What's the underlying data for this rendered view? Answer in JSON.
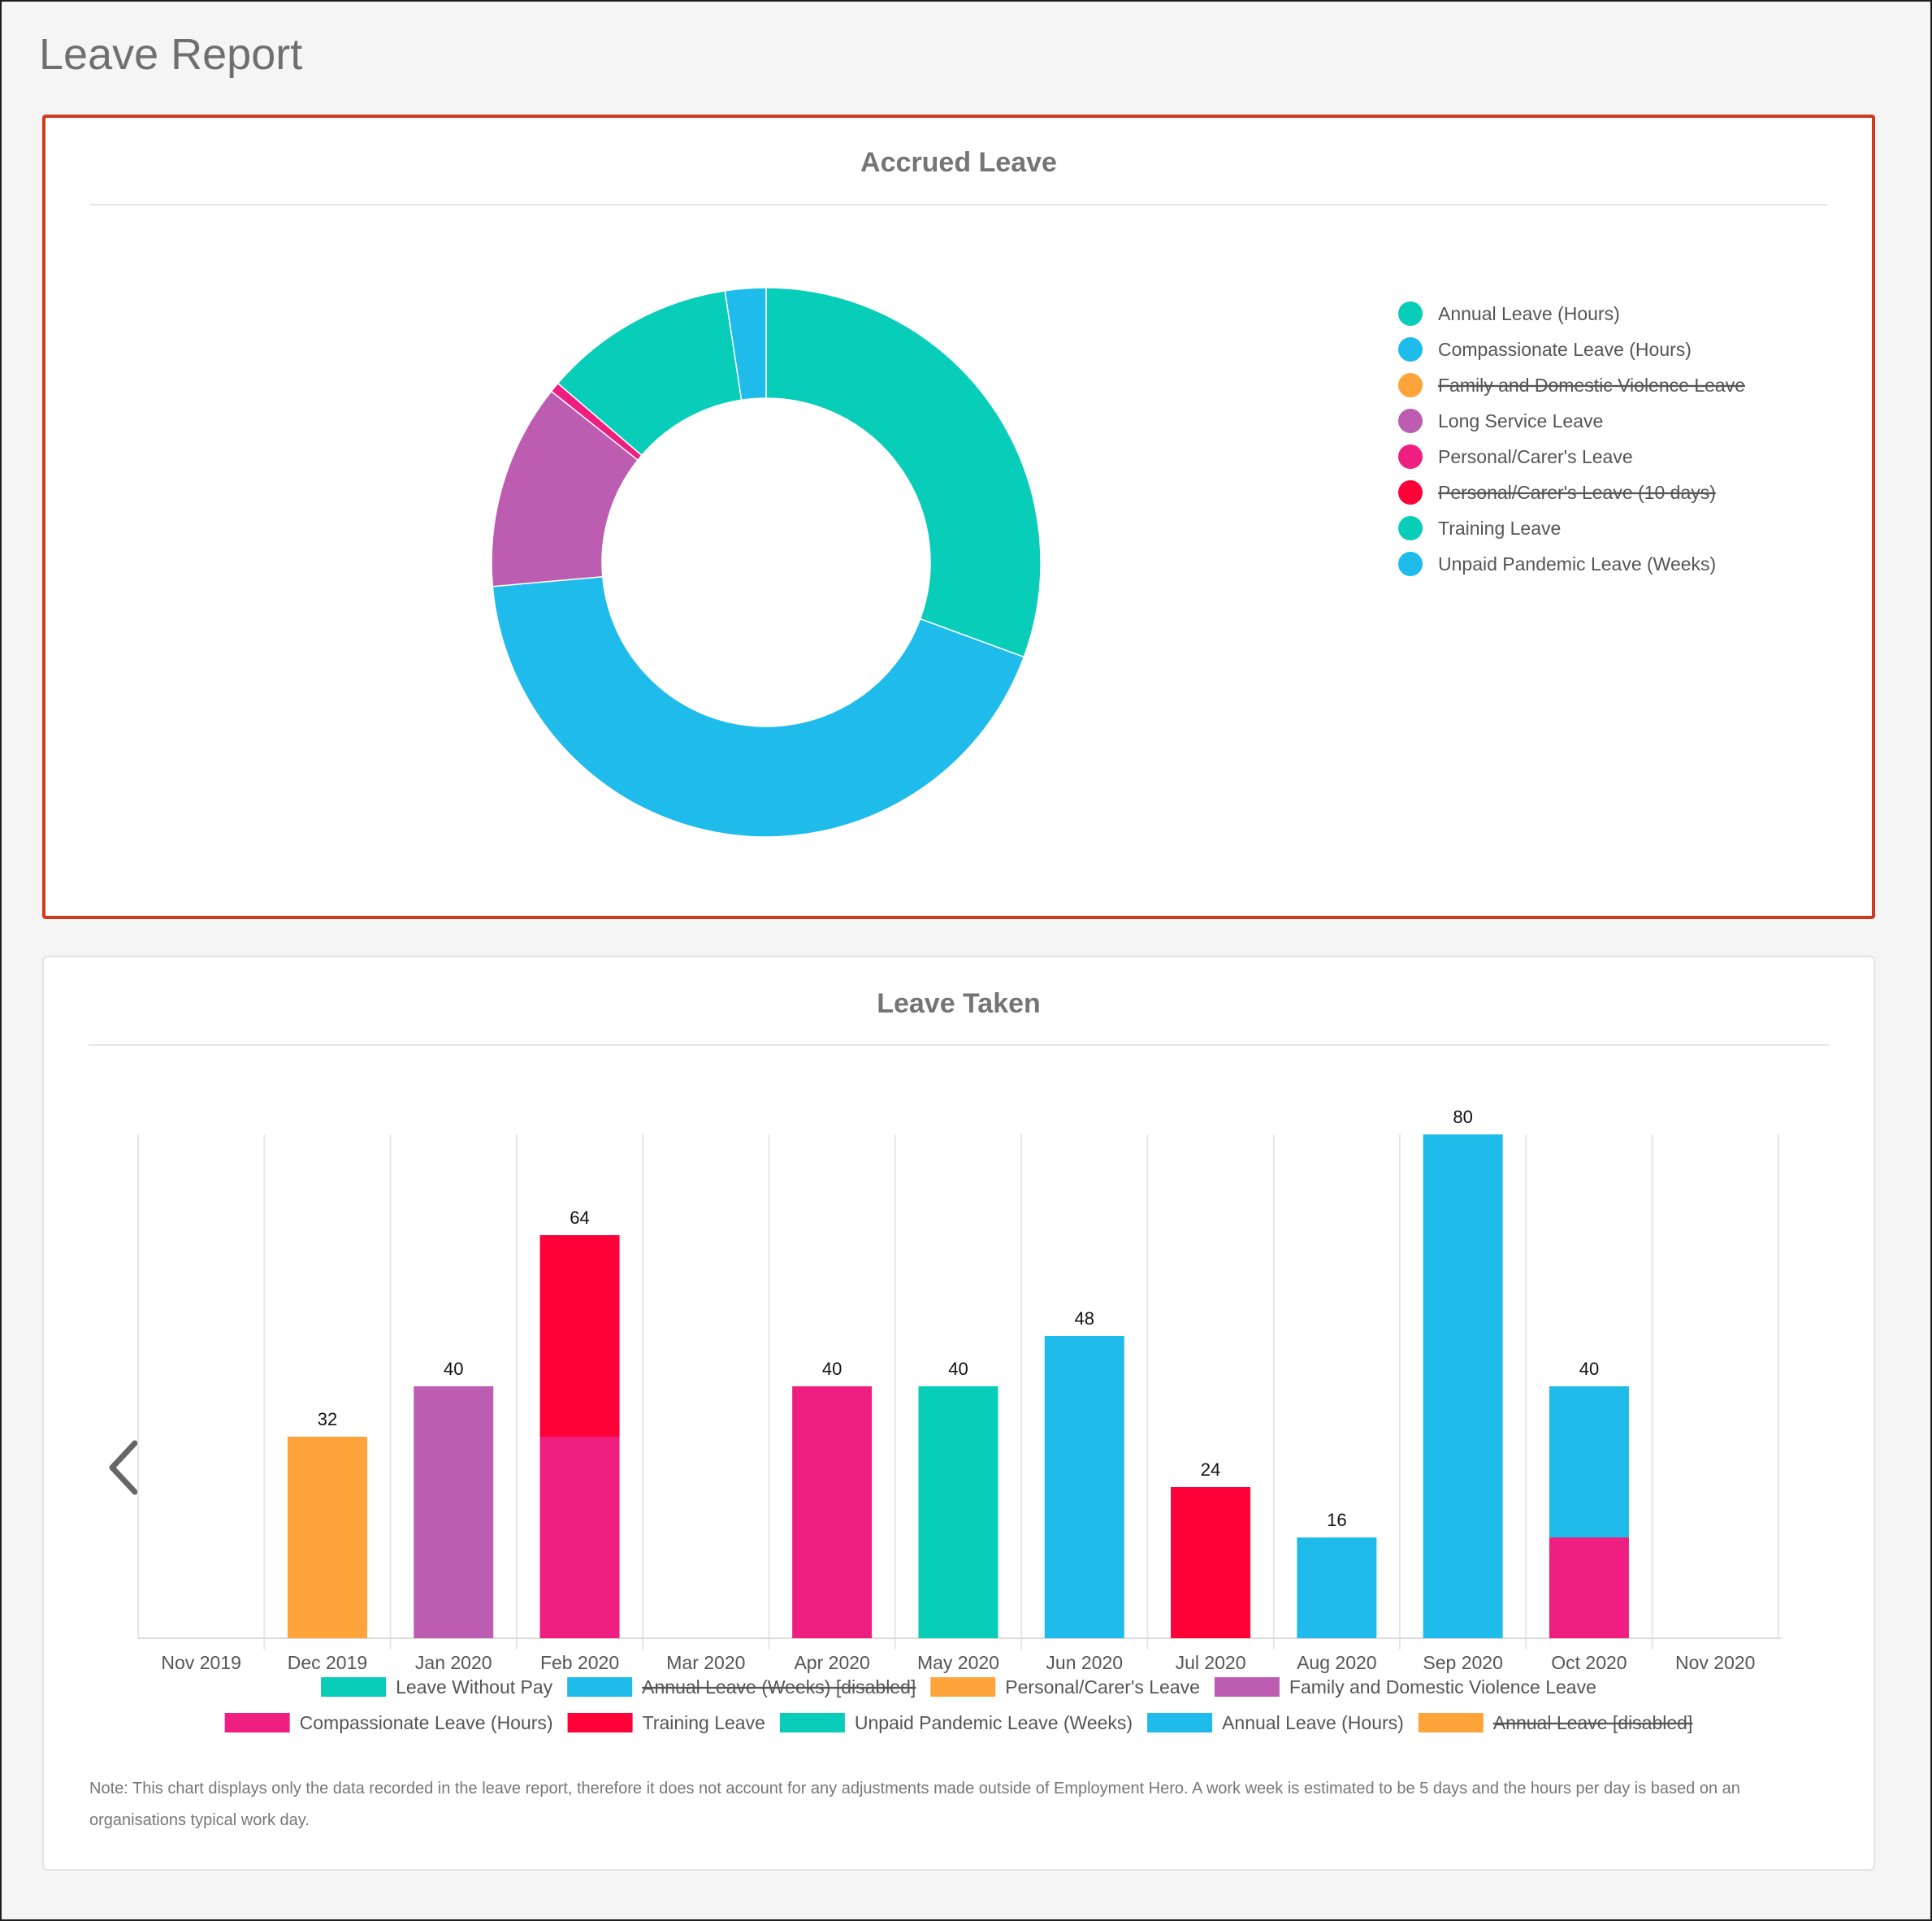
{
  "page": {
    "title": "Leave Report"
  },
  "accrued": {
    "title": "Accrued Leave",
    "legend": [
      {
        "label": "Annual Leave (Hours)",
        "color": "#08cdb9",
        "disabled": false
      },
      {
        "label": "Compassionate Leave (Hours)",
        "color": "#1fbceb",
        "disabled": false
      },
      {
        "label": "Family and Domestic Violence Leave",
        "color": "#ffa43a",
        "disabled": true
      },
      {
        "label": "Long Service Leave",
        "color": "#bd5db1",
        "disabled": false
      },
      {
        "label": "Personal/Carer's Leave",
        "color": "#ee1f81",
        "disabled": false
      },
      {
        "label": "Personal/Carer's Leave (10 days)",
        "color": "#ff0038",
        "disabled": true
      },
      {
        "label": "Training Leave",
        "color": "#08cdb9",
        "disabled": false
      },
      {
        "label": "Unpaid Pandemic Leave (Weeks)",
        "color": "#1fbceb",
        "disabled": false
      }
    ]
  },
  "taken": {
    "title": "Leave Taken",
    "note": "Note: This chart displays only the data recorded in the leave report, therefore it does not account for any adjustments made outside of Employment Hero. A work week is estimated to be 5 days and the hours per day is based on an organisations typical work day.",
    "legend": [
      {
        "label": "Leave Without Pay",
        "color": "#08cdb9",
        "disabled": false
      },
      {
        "label": "Annual Leave (Weeks) [disabled]",
        "color": "#1fbceb",
        "disabled": true
      },
      {
        "label": "Personal/Carer's Leave",
        "color": "#ffa43a",
        "disabled": false
      },
      {
        "label": "Family and Domestic Violence Leave",
        "color": "#bd5db1",
        "disabled": false
      },
      {
        "label": "Compassionate Leave (Hours)",
        "color": "#ee1f81",
        "disabled": false
      },
      {
        "label": "Training Leave",
        "color": "#ff0038",
        "disabled": false
      },
      {
        "label": "Unpaid Pandemic Leave (Weeks)",
        "color": "#08cdb9",
        "disabled": false
      },
      {
        "label": "Annual Leave (Hours)",
        "color": "#1fbceb",
        "disabled": false
      },
      {
        "label": "Annual  Leave [disabled]",
        "color": "#ffa43a",
        "disabled": true
      }
    ]
  },
  "chart_data": [
    {
      "type": "pie",
      "title": "Accrued Leave",
      "donut": true,
      "slices": [
        {
          "label": "Annual Leave (Hours)",
          "value": 30.6,
          "color": "#08cdb9"
        },
        {
          "label": "Compassionate Leave (Hours)",
          "value": 43.0,
          "color": "#1fbceb"
        },
        {
          "label": "Long Service Leave",
          "value": 12.1,
          "color": "#bd5db1"
        },
        {
          "label": "Personal/Carer's Leave",
          "value": 0.6,
          "color": "#ee1f81"
        },
        {
          "label": "Training Leave",
          "value": 11.3,
          "color": "#08cdb9"
        },
        {
          "label": "Unpaid Pandemic Leave (Weeks)",
          "value": 2.4,
          "color": "#1fbceb"
        }
      ],
      "legend_position": "right"
    },
    {
      "type": "bar",
      "stacked": true,
      "title": "Leave Taken",
      "categories": [
        "Nov 2019",
        "Dec 2019",
        "Jan 2020",
        "Feb 2020",
        "Mar 2020",
        "Apr 2020",
        "May 2020",
        "Jun 2020",
        "Jul 2020",
        "Aug 2020",
        "Sep 2020",
        "Oct 2020",
        "Nov 2020"
      ],
      "ylim": [
        0,
        80
      ],
      "totals": [
        null,
        32,
        40,
        64,
        null,
        40,
        40,
        48,
        24,
        16,
        80,
        40,
        null
      ],
      "series": [
        {
          "name": "Personal/Carer's Leave",
          "color": "#ffa43a",
          "values": [
            0,
            32,
            0,
            0,
            0,
            0,
            0,
            0,
            0,
            0,
            0,
            0,
            0
          ]
        },
        {
          "name": "Family and Domestic Violence Leave",
          "color": "#bd5db1",
          "values": [
            0,
            0,
            40,
            0,
            0,
            0,
            0,
            0,
            0,
            0,
            0,
            0,
            0
          ]
        },
        {
          "name": "Compassionate Leave (Hours)",
          "color": "#ee1f81",
          "values": [
            0,
            0,
            0,
            32,
            0,
            40,
            0,
            0,
            0,
            0,
            0,
            16,
            0
          ]
        },
        {
          "name": "Training Leave",
          "color": "#ff0038",
          "values": [
            0,
            0,
            0,
            32,
            0,
            0,
            0,
            0,
            24,
            0,
            0,
            0,
            0
          ]
        },
        {
          "name": "Unpaid Pandemic Leave (Weeks)",
          "color": "#08cdb9",
          "values": [
            0,
            0,
            0,
            0,
            0,
            0,
            40,
            0,
            0,
            0,
            0,
            0,
            0
          ]
        },
        {
          "name": "Annual Leave (Hours)",
          "color": "#1fbceb",
          "values": [
            0,
            0,
            0,
            0,
            0,
            0,
            0,
            48,
            0,
            16,
            80,
            24,
            0
          ]
        }
      ],
      "grid": true,
      "legend_position": "bottom"
    }
  ]
}
